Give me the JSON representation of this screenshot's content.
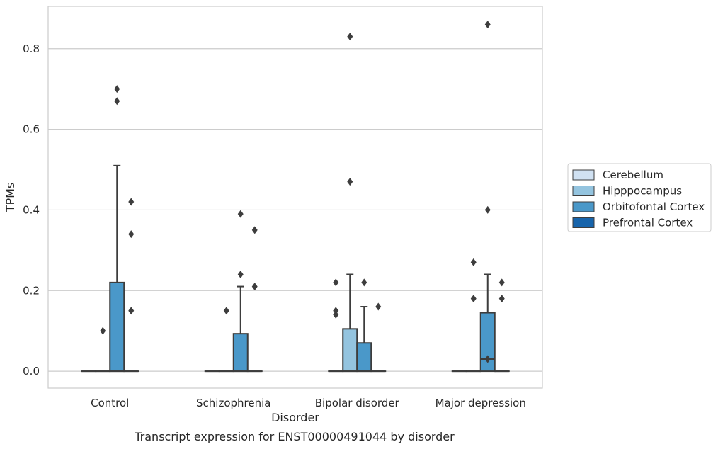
{
  "chart_data": {
    "type": "box",
    "xlabel": "Disorder",
    "ylabel": "TPMs",
    "caption": "Transcript expression for ENST00000491044 by disorder",
    "categories": [
      "Control",
      "Schizophrenia",
      "Bipolar disorder",
      "Major depression"
    ],
    "ylim": [
      -0.042,
      0.905
    ],
    "yticks": [
      0.0,
      0.2,
      0.4,
      0.6,
      0.8
    ],
    "ytick_labels": [
      "0.0",
      "0.2",
      "0.4",
      "0.6",
      "0.8"
    ],
    "grid": "horizontal",
    "legend_position": "right",
    "series": [
      {
        "name": "Cerebellum",
        "color": "#d0e1f2",
        "boxes": [
          {
            "q1": 0,
            "median": 0,
            "q3": 0,
            "whisker_low": 0,
            "whisker_high": 0,
            "outliers": []
          },
          {
            "q1": 0,
            "median": 0,
            "q3": 0,
            "whisker_low": 0,
            "whisker_high": 0,
            "outliers": []
          },
          {
            "q1": 0,
            "median": 0,
            "q3": 0,
            "whisker_low": 0,
            "whisker_high": 0,
            "outliers": []
          },
          {
            "q1": 0,
            "median": 0,
            "q3": 0,
            "whisker_low": 0,
            "whisker_high": 0,
            "outliers": []
          }
        ]
      },
      {
        "name": "Hipppocampus",
        "color": "#94c4df",
        "boxes": [
          {
            "q1": 0,
            "median": 0,
            "q3": 0,
            "whisker_low": 0,
            "whisker_high": 0,
            "outliers": [
              0.1
            ]
          },
          {
            "q1": 0,
            "median": 0,
            "q3": 0,
            "whisker_low": 0,
            "whisker_high": 0,
            "outliers": [
              0.15
            ]
          },
          {
            "q1": 0,
            "median": 0,
            "q3": 0.105,
            "whisker_low": 0,
            "whisker_high": 0.24,
            "outliers": [
              0.47,
              0.83
            ]
          },
          {
            "q1": 0,
            "median": 0,
            "q3": 0,
            "whisker_low": 0,
            "whisker_high": 0,
            "outliers": [
              0.18
            ]
          }
        ]
      },
      {
        "name": "Orbitofontal Cortex",
        "color": "#4a98c9",
        "boxes": [
          {
            "q1": 0,
            "median": 0,
            "q3": 0.22,
            "whisker_low": 0,
            "whisker_high": 0.51,
            "outliers": [
              0.67,
              0.7
            ]
          },
          {
            "q1": 0,
            "median": 0,
            "q3": 0.093,
            "whisker_low": 0,
            "whisker_high": 0.21,
            "outliers": [
              0.24,
              0.39
            ]
          },
          {
            "q1": 0,
            "median": 0,
            "q3": 0.07,
            "whisker_low": 0,
            "whisker_high": 0.16,
            "outliers": [
              0.22
            ]
          },
          {
            "q1": 0,
            "median": 0.03,
            "q3": 0.145,
            "whisker_low": 0,
            "whisker_high": 0.24,
            "outliers": [
              0.4,
              0.86
            ]
          }
        ]
      },
      {
        "name": "Prefrontal Cortex",
        "color": "#1764ab",
        "boxes": [
          {
            "q1": 0,
            "median": 0,
            "q3": 0,
            "whisker_low": 0,
            "whisker_high": 0,
            "outliers": [
              0.15,
              0.34,
              0.42
            ]
          },
          {
            "q1": 0,
            "median": 0,
            "q3": 0,
            "whisker_low": 0,
            "whisker_high": 0,
            "outliers": [
              0.21,
              0.35
            ]
          },
          {
            "q1": 0,
            "median": 0,
            "q3": 0,
            "whisker_low": 0,
            "whisker_high": 0,
            "outliers": [
              0.16
            ]
          },
          {
            "q1": 0,
            "median": 0,
            "q3": 0,
            "whisker_low": 0,
            "whisker_high": 0,
            "outliers": [
              0.18,
              0.22
            ]
          }
        ]
      }
    ],
    "extra_outliers": [
      {
        "category": 2,
        "series": 0,
        "values": [
          0.14,
          0.15,
          0.22
        ]
      },
      {
        "category": 3,
        "series": 2,
        "values": [
          0.03
        ]
      },
      {
        "category": 3,
        "series": 1,
        "values": [
          0.27
        ]
      }
    ]
  }
}
